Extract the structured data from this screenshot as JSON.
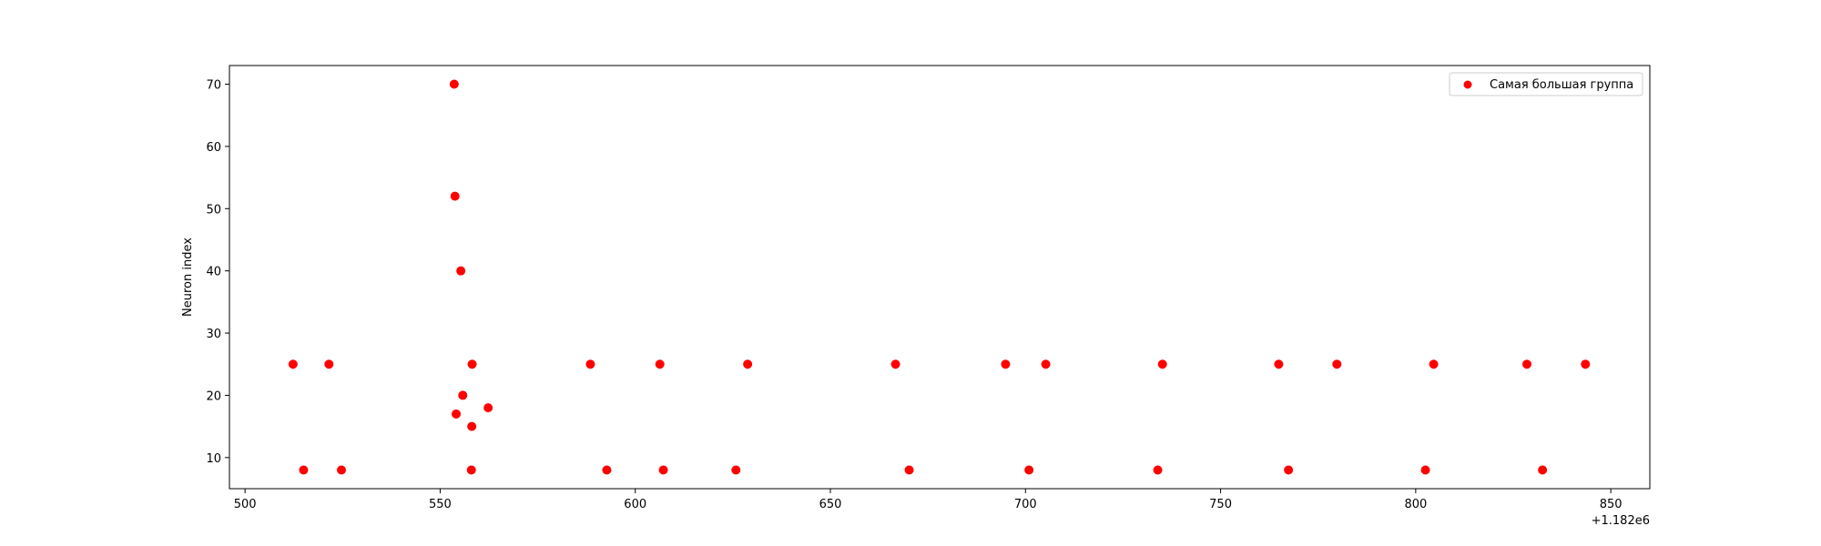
{
  "chart_data": {
    "type": "scatter",
    "title": "",
    "xlabel": "",
    "ylabel": "Neuron index",
    "x_offset_label": "+1.182e6",
    "xlim": [
      496,
      860
    ],
    "ylim": [
      5,
      73
    ],
    "xticks": [
      500,
      550,
      600,
      650,
      700,
      750,
      800,
      850
    ],
    "yticks": [
      10,
      20,
      30,
      40,
      50,
      60,
      70
    ],
    "grid": false,
    "legend_position": "top-right",
    "series": [
      {
        "name": "Самая большая группа",
        "color": "#ff0000",
        "points": [
          {
            "x": 512.3,
            "y": 25
          },
          {
            "x": 521.5,
            "y": 25
          },
          {
            "x": 558.2,
            "y": 25
          },
          {
            "x": 588.5,
            "y": 25
          },
          {
            "x": 606.3,
            "y": 25
          },
          {
            "x": 628.8,
            "y": 25
          },
          {
            "x": 666.7,
            "y": 25
          },
          {
            "x": 694.9,
            "y": 25
          },
          {
            "x": 705.2,
            "y": 25
          },
          {
            "x": 735.1,
            "y": 25
          },
          {
            "x": 764.9,
            "y": 25
          },
          {
            "x": 779.8,
            "y": 25
          },
          {
            "x": 804.6,
            "y": 25
          },
          {
            "x": 828.5,
            "y": 25
          },
          {
            "x": 843.5,
            "y": 25
          },
          {
            "x": 553.6,
            "y": 70
          },
          {
            "x": 553.8,
            "y": 52
          },
          {
            "x": 555.3,
            "y": 40
          },
          {
            "x": 555.8,
            "y": 20
          },
          {
            "x": 562.3,
            "y": 18
          },
          {
            "x": 554.1,
            "y": 17
          },
          {
            "x": 558.1,
            "y": 15
          },
          {
            "x": 515.0,
            "y": 8
          },
          {
            "x": 524.7,
            "y": 8
          },
          {
            "x": 558.0,
            "y": 8
          },
          {
            "x": 592.7,
            "y": 8
          },
          {
            "x": 607.2,
            "y": 8
          },
          {
            "x": 625.8,
            "y": 8
          },
          {
            "x": 670.2,
            "y": 8
          },
          {
            "x": 700.9,
            "y": 8
          },
          {
            "x": 733.9,
            "y": 8
          },
          {
            "x": 767.4,
            "y": 8
          },
          {
            "x": 802.5,
            "y": 8
          },
          {
            "x": 832.5,
            "y": 8
          }
        ]
      }
    ]
  }
}
